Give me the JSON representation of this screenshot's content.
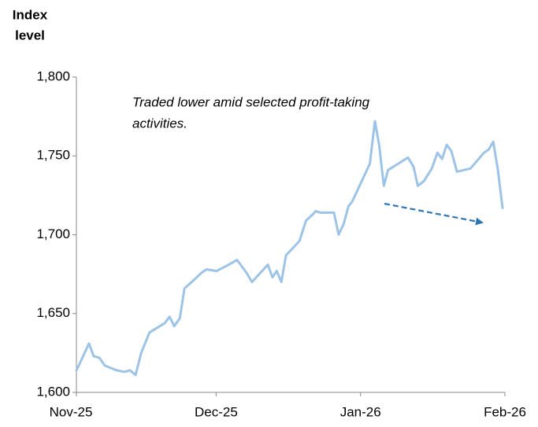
{
  "chart_data": {
    "type": "line",
    "y_label": [
      "Index",
      "level"
    ],
    "annotation": [
      "Traded lower amid selected profit-taking",
      "activities."
    ],
    "x": [
      0,
      0.5,
      2.7,
      3.7,
      4.9,
      6.1,
      8.6,
      10.3,
      11.5,
      12.7,
      13.9,
      15.7,
      19,
      20,
      21,
      22.2,
      23.2,
      25.5,
      26.9,
      27.9,
      30.1,
      32.7,
      34.5,
      36.5,
      37.7,
      41.1,
      42.1,
      43,
      44,
      45,
      47.9,
      49.3,
      50.8,
      51.4,
      52.4,
      55.3,
      56.3,
      57.4,
      58.4,
      59.2,
      63,
      64.1,
      65,
      66,
      66.9,
      71.2,
      72.4,
      73.3,
      74.6,
      76.3,
      77.5,
      78.5,
      79.5,
      80.5,
      81.7,
      84.6,
      87.5,
      88.5,
      89.5,
      90.5,
      91.5
    ],
    "series": [
      {
        "name": "Index level",
        "color": "#9dc3e6",
        "values": [
          1614,
          1617,
          1631,
          1623,
          1622,
          1617,
          1614,
          1613,
          1614,
          1611,
          1625,
          1638,
          1644,
          1648,
          1642,
          1647,
          1666,
          1672,
          1676,
          1678,
          1677,
          1681,
          1684,
          1676,
          1670,
          1681,
          1673,
          1677,
          1670,
          1687,
          1696,
          1709,
          1713,
          1715,
          1714,
          1714,
          1700,
          1707,
          1718,
          1721,
          1745,
          1772,
          1757,
          1731,
          1741,
          1749,
          1743,
          1731,
          1734,
          1742,
          1752,
          1748,
          1757,
          1753,
          1740,
          1742,
          1752,
          1754,
          1759,
          1741,
          1717
        ]
      }
    ],
    "xlim": [
      0,
      92
    ],
    "xticks": [
      {
        "value": 0,
        "label": "Nov-25"
      },
      {
        "value": 30,
        "label": "Dec-25"
      },
      {
        "value": 61,
        "label": "Jan-26"
      },
      {
        "value": 92,
        "label": "Feb-26"
      }
    ],
    "ylim": [
      1600,
      1800
    ],
    "yticks": [
      {
        "value": 1600,
        "label": "1,600"
      },
      {
        "value": 1650,
        "label": "1,650"
      },
      {
        "value": 1700,
        "label": "1,700"
      },
      {
        "value": 1750,
        "label": "1,750"
      },
      {
        "value": 1800,
        "label": "1,800"
      }
    ],
    "grid": false
  }
}
